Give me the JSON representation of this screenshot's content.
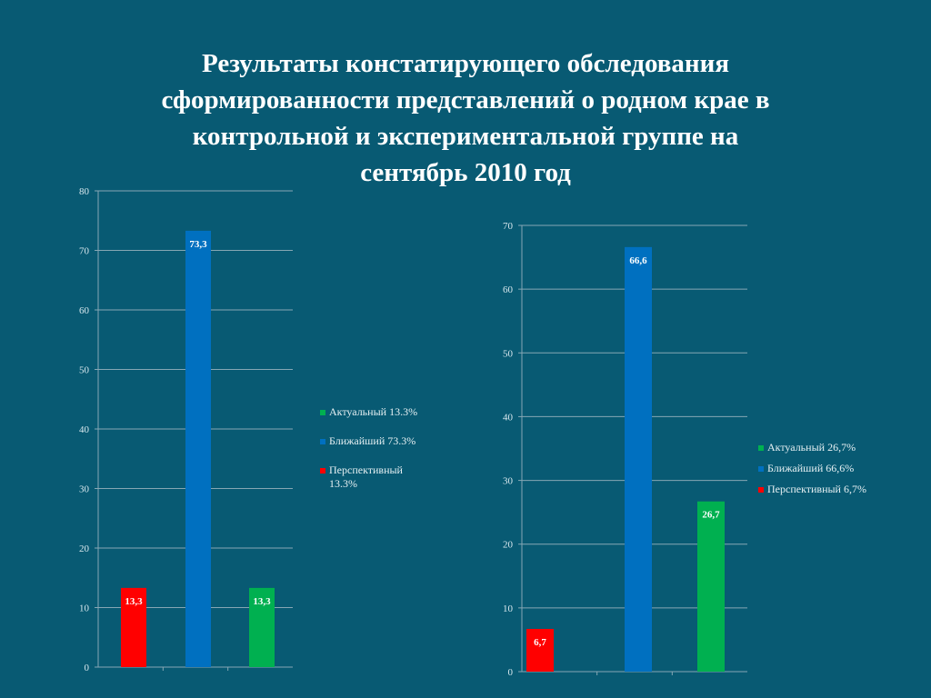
{
  "title_lines": [
    "Результаты констатирующего обследования",
    "сформированности представлений о родном крае в",
    "контрольной и экспериментальной группе на",
    "сентябрь  2010 год"
  ],
  "colors": {
    "background": "#085a73",
    "red": "#ff0000",
    "blue": "#0070c0",
    "green": "#00b050"
  },
  "chart_data": [
    {
      "type": "bar",
      "categories": [
        "Перспективный",
        "Ближайший",
        "Актуальный"
      ],
      "values": [
        13.3,
        73.3,
        13.3
      ],
      "value_labels": [
        "13,3",
        "73,3",
        "13,3"
      ],
      "bar_colors": [
        "#ff0000",
        "#0070c0",
        "#00b050"
      ],
      "ylim": [
        0,
        80
      ],
      "yticks": [
        "0",
        "10",
        "20",
        "30",
        "40",
        "50",
        "60",
        "70",
        "80"
      ],
      "grid": true,
      "legend_position": "right",
      "legend": [
        {
          "label": "Актуальный 13.3%",
          "color": "#00b050"
        },
        {
          "label": "Ближайший 73.3%",
          "color": "#0070c0"
        },
        {
          "label": "Перспективный 13.3%",
          "color": "#ff0000"
        }
      ]
    },
    {
      "type": "bar",
      "categories": [
        "Перспективный",
        "Ближайший",
        "Актуальный"
      ],
      "values": [
        6.7,
        66.6,
        26.7
      ],
      "value_labels": [
        "6,7",
        "66,6",
        "26,7"
      ],
      "bar_colors": [
        "#ff0000",
        "#0070c0",
        "#00b050"
      ],
      "ylim": [
        0,
        70
      ],
      "yticks": [
        "0",
        "10",
        "20",
        "30",
        "40",
        "50",
        "60",
        "70"
      ],
      "grid": true,
      "legend_position": "right",
      "legend": [
        {
          "label": "Актуальный 26,7%",
          "color": "#00b050"
        },
        {
          "label": "Ближайший 66,6%",
          "color": "#0070c0"
        },
        {
          "label": "Перспективный 6,7%",
          "color": "#ff0000"
        }
      ]
    }
  ]
}
